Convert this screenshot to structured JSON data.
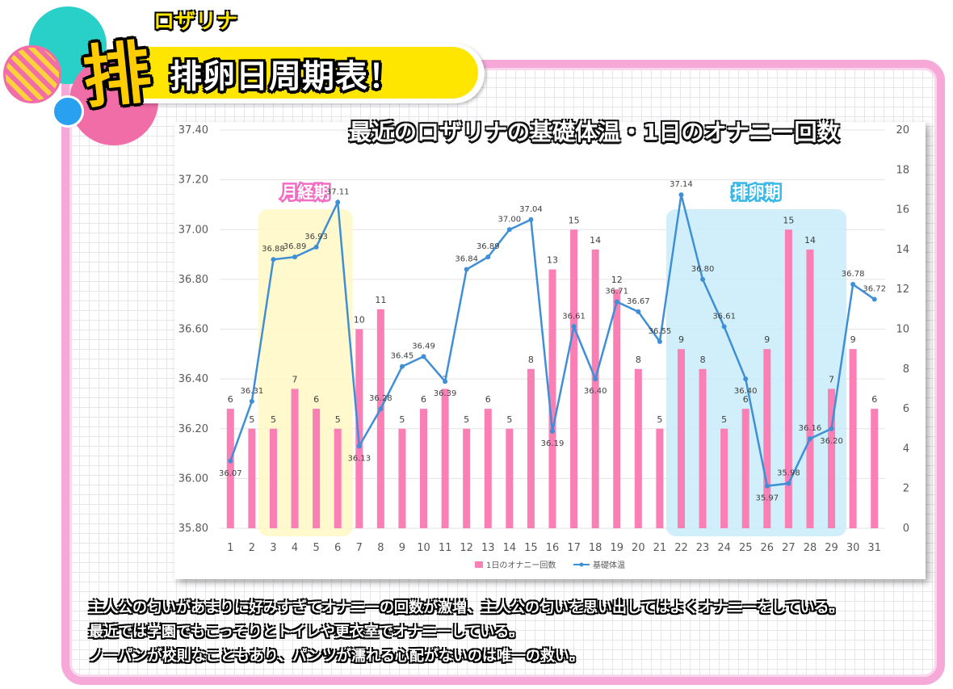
{
  "header": {
    "badge_char": "排",
    "name": "ロザリナ",
    "title": "排卵日周期表！"
  },
  "chart_heading": "最近のロザリナの基礎体温・1日のオナニー回数",
  "description": [
    "主人公の匂いがあまりに好みすぎてオナニーの回数が激増、主人公の匂いを思い出してはよくオナニーをしている。",
    "最近では学園でもこっそりとトイレや更衣室でオナニーしている。",
    "ノーパンが校則なこともあり、パンツが濡れる心配がないのは唯一の救い。"
  ],
  "colors": {
    "bar": "#f97fb5",
    "line": "#3f8fd6",
    "menstrual_zone": "#fff8c4",
    "ovulation_zone": "#c9ecf9",
    "menstrual_label": "#f36bc3",
    "ovulation_label": "#38b8e6"
  },
  "chart_data": {
    "type": "bar+line",
    "categories": [
      "1",
      "2",
      "3",
      "4",
      "5",
      "6",
      "7",
      "8",
      "9",
      "10",
      "11",
      "12",
      "13",
      "14",
      "15",
      "16",
      "17",
      "18",
      "19",
      "20",
      "21",
      "22",
      "23",
      "24",
      "25",
      "26",
      "27",
      "28",
      "29",
      "30",
      "31"
    ],
    "series": [
      {
        "name": "1日のオナニー回数",
        "type": "bar",
        "axis": "right",
        "values": [
          6,
          5,
          5,
          7,
          6,
          5,
          10,
          11,
          5,
          6,
          7,
          5,
          6,
          5,
          8,
          13,
          15,
          14,
          12,
          8,
          5,
          9,
          8,
          5,
          6,
          9,
          15,
          14,
          7,
          9,
          6
        ]
      },
      {
        "name": "基礎体温",
        "type": "line",
        "axis": "left",
        "values": [
          36.07,
          36.31,
          36.88,
          36.89,
          36.93,
          37.11,
          36.13,
          36.28,
          36.45,
          36.49,
          36.39,
          36.84,
          36.89,
          37.0,
          37.04,
          36.19,
          36.61,
          36.4,
          36.71,
          36.67,
          36.55,
          37.14,
          36.8,
          36.61,
          36.4,
          35.97,
          35.98,
          36.16,
          36.2,
          36.78,
          36.72
        ]
      }
    ],
    "y_left": {
      "min": 35.8,
      "max": 37.4,
      "ticks": [
        "35.80",
        "36.00",
        "36.20",
        "36.40",
        "36.60",
        "36.80",
        "37.00",
        "37.20",
        "37.40"
      ]
    },
    "y_right": {
      "min": 0,
      "max": 20,
      "ticks": [
        "0",
        "2",
        "4",
        "6",
        "8",
        "10",
        "12",
        "14",
        "16",
        "18",
        "20"
      ]
    },
    "zones": [
      {
        "label": "月経期",
        "from": "3",
        "to": "6"
      },
      {
        "label": "排卵期",
        "from": "22",
        "to": "29"
      }
    ],
    "legend_position": "bottom",
    "grid": true
  }
}
